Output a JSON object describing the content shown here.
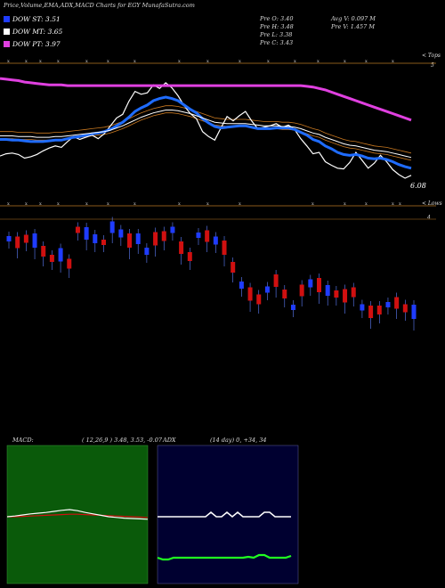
{
  "header": {
    "title": "Price,Volume,EMA,ADX,MACD Charts for EGY MunafaSutra.com"
  },
  "legend": [
    {
      "label": "DOW ST: 3.51",
      "color": "#1f3cff"
    },
    {
      "label": "DOW MT: 3.65",
      "color": "#ffffff"
    },
    {
      "label": "DOW PT: 3.97",
      "color": "#e040e0"
    }
  ],
  "ohlc": {
    "open": "Pre   O: 3.40",
    "high": "Pre   H: 3.48",
    "low": "Pre   L: 3.38",
    "close": "Pre   C: 3.43",
    "avg_volume": "Avg V: 0.097 M",
    "pre_volume": "Pre   V: 1.457 M"
  },
  "labels": {
    "top_right_5": "5",
    "tops": "< Tops",
    "lows": "< Lows",
    "price_last": "6.08",
    "price_4": "4"
  },
  "macd": {
    "label": "MACD:",
    "params": "( 12,26,9 ) 3.48, 3.53, -0.07"
  },
  "adx": {
    "label": "ADX",
    "params": "(14  day) 0,  +34,  34"
  },
  "colors": {
    "up": "#1f3cff",
    "down": "#d01010",
    "ema_short": "#1f6cff",
    "ema_long": "#e040e0",
    "orange": "#c87820",
    "macd_bg": "#0a5a0a",
    "adx_bg": "#000030"
  },
  "chart_data": [
    {
      "type": "line",
      "title": "",
      "series": [
        {
          "name": "Price",
          "color": "#ffffff",
          "values": [
            10.2,
            10.5,
            10.6,
            10.4,
            9.9,
            10.1,
            10.4,
            10.9,
            11.3,
            11.6,
            11.4,
            12.2,
            12.9,
            12.5,
            12.8,
            13.1,
            12.6,
            13.3,
            14.4,
            15.5,
            16.0,
            17.8,
            19.2,
            18.8,
            19.0,
            20.1,
            19.6,
            20.4,
            19.7,
            18.6,
            17.2,
            16.1,
            15.4,
            13.6,
            12.9,
            12.4,
            14.1,
            15.7,
            15.1,
            15.8,
            16.4,
            15.1,
            14.0,
            14.2,
            14.4,
            14.7,
            14.2,
            14.5,
            13.9,
            12.6,
            11.6,
            10.5,
            10.7,
            9.4,
            8.9,
            8.5,
            8.4,
            9.3,
            10.7,
            9.6,
            8.5,
            9.2,
            10.3,
            9.4,
            8.3,
            7.6,
            7.1,
            7.5
          ]
        },
        {
          "name": "DOW ST: 3.51",
          "color": "#1f6cff",
          "values": [
            12.5,
            12.5,
            12.4,
            12.4,
            12.3,
            12.2,
            12.2,
            12.2,
            12.3,
            12.4,
            12.4,
            12.6,
            12.8,
            12.9,
            13.1,
            13.3,
            13.4,
            13.6,
            13.9,
            14.4,
            14.9,
            15.6,
            16.4,
            16.9,
            17.3,
            17.9,
            18.2,
            18.4,
            18.2,
            17.9,
            17.3,
            16.7,
            16.2,
            15.4,
            14.8,
            14.3,
            14.1,
            14.2,
            14.3,
            14.4,
            14.4,
            14.2,
            14.0,
            14.0,
            14.0,
            14.1,
            14.1,
            14.1,
            13.9,
            13.5,
            13.1,
            12.5,
            12.2,
            11.6,
            11.2,
            10.7,
            10.4,
            10.3,
            10.4,
            10.2,
            9.9,
            9.8,
            9.9,
            9.7,
            9.4,
            9.0,
            8.7,
            8.5
          ]
        },
        {
          "name": "DOW MT: 3.65",
          "color": "#ffffff",
          "values": [
            13.0,
            13.0,
            13.0,
            12.9,
            12.9,
            12.9,
            12.8,
            12.8,
            12.8,
            12.9,
            12.9,
            13.0,
            13.1,
            13.2,
            13.3,
            13.4,
            13.5,
            13.6,
            13.8,
            14.1,
            14.4,
            14.8,
            15.2,
            15.6,
            15.9,
            16.2,
            16.4,
            16.6,
            16.6,
            16.5,
            16.3,
            16.1,
            15.8,
            15.5,
            15.2,
            14.9,
            14.8,
            14.7,
            14.7,
            14.7,
            14.7,
            14.6,
            14.5,
            14.4,
            14.4,
            14.4,
            14.3,
            14.3,
            14.2,
            14.0,
            13.7,
            13.4,
            13.2,
            12.8,
            12.5,
            12.2,
            11.9,
            11.7,
            11.6,
            11.4,
            11.2,
            11.0,
            10.9,
            10.8,
            10.6,
            10.4,
            10.2,
            10.0
          ]
        },
        {
          "name": "DOW PT: 3.97",
          "color": "#e040e0",
          "values": [
            21.0,
            20.9,
            20.8,
            20.7,
            20.5,
            20.4,
            20.3,
            20.2,
            20.1,
            20.1,
            20.1,
            20.0,
            20.0,
            20.0,
            20.0,
            20.0,
            20.0,
            20.0,
            20.0,
            20.0,
            20.0,
            20.0,
            20.0,
            20.0,
            20.0,
            20.0,
            20.0,
            20.0,
            20.0,
            20.0,
            20.0,
            20.0,
            20.0,
            20.0,
            20.0,
            20.0,
            20.0,
            20.0,
            20.0,
            20.0,
            20.0,
            20.0,
            20.0,
            20.0,
            20.0,
            20.0,
            20.0,
            20.0,
            20.0,
            20.0,
            19.9,
            19.8,
            19.6,
            19.4,
            19.1,
            18.8,
            18.5,
            18.2,
            17.9,
            17.6,
            17.3,
            17.0,
            16.7,
            16.4,
            16.1,
            15.8,
            15.5,
            15.2
          ]
        }
      ]
    },
    {
      "type": "bar",
      "title": "",
      "candles_up_flags": [
        1,
        0,
        0,
        1,
        0,
        0,
        1,
        0,
        0,
        1,
        1,
        0,
        1,
        1,
        0,
        1,
        1,
        0,
        0,
        1,
        0,
        0,
        1,
        0,
        1,
        0,
        0,
        1,
        0,
        0,
        1,
        0,
        0,
        1,
        0,
        1,
        0,
        1,
        0,
        0,
        0,
        1,
        0,
        0,
        1,
        0,
        0,
        1,
        0,
        0
      ]
    },
    {
      "type": "line",
      "title": "",
      "series": [
        {
          "name": "MACD",
          "color": "#ffffff",
          "values": [
            0.0,
            0.02,
            0.05,
            0.08,
            0.1,
            0.12,
            0.15,
            0.18,
            0.2,
            0.17,
            0.12,
            0.08,
            0.04,
            0.0,
            -0.02,
            -0.04,
            -0.05,
            -0.06,
            -0.07
          ]
        },
        {
          "name": "Signal",
          "color": "#d01010",
          "values": [
            0.0,
            0.0,
            0.01,
            0.02,
            0.03,
            0.04,
            0.05,
            0.06,
            0.07,
            0.07,
            0.06,
            0.05,
            0.04,
            0.03,
            0.02,
            0.01,
            0.0,
            -0.01,
            -0.02
          ]
        }
      ]
    },
    {
      "type": "line",
      "title": "",
      "series": [
        {
          "name": "ADX",
          "color": "#ffffff",
          "values": [
            0,
            0,
            0,
            0,
            0,
            0,
            0,
            0,
            0,
            0,
            5,
            0,
            0,
            5,
            0,
            5,
            0,
            0,
            0,
            0,
            5,
            5,
            0,
            0,
            0,
            0
          ]
        },
        {
          "name": "DI+",
          "color": "#20ff20",
          "values": [
            10,
            8,
            8,
            10,
            10,
            10,
            10,
            10,
            10,
            10,
            10,
            10,
            10,
            10,
            10,
            10,
            10,
            11,
            10,
            13,
            13,
            10,
            10,
            10,
            10,
            12
          ]
        }
      ]
    }
  ]
}
